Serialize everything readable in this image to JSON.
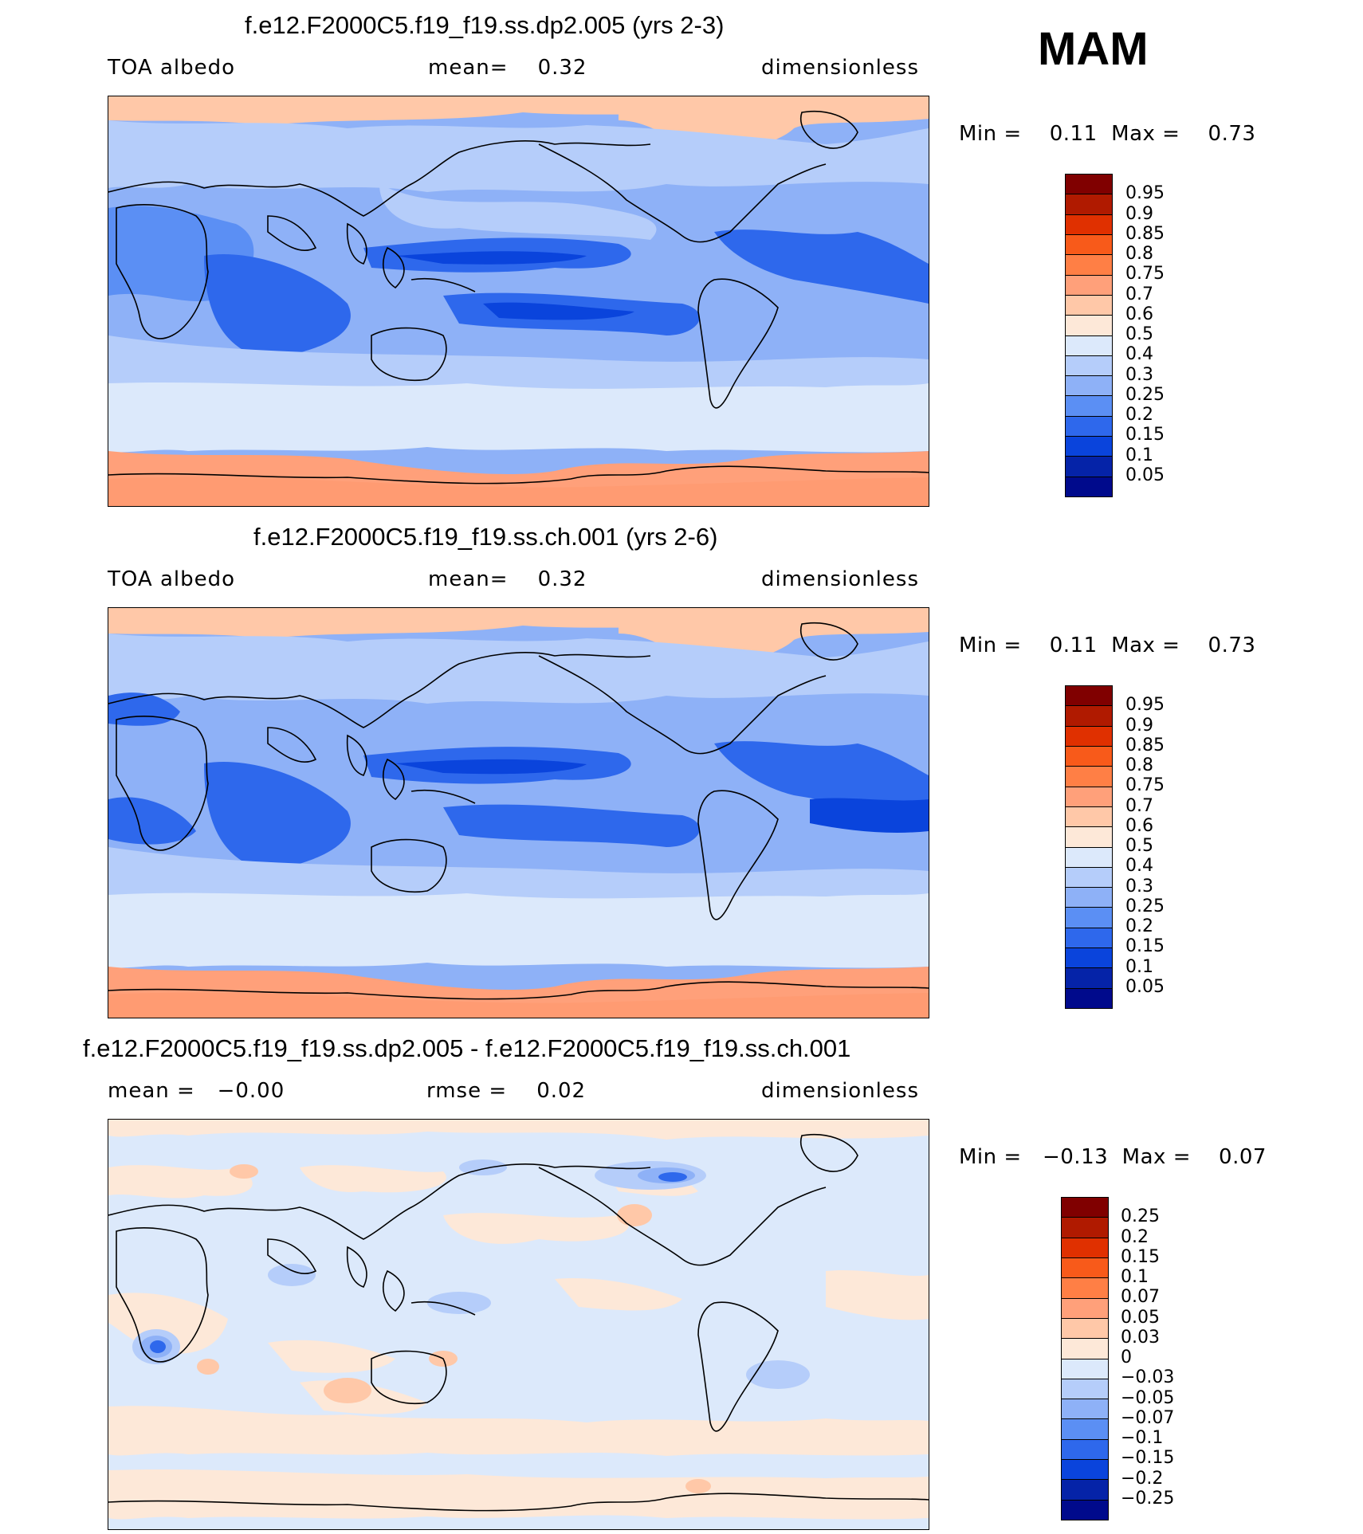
{
  "season": "MAM",
  "panels": [
    {
      "title": "f.e12.F2000C5.f19_f19.ss.dp2.005 (yrs 2-3)",
      "left_label": "TOA albedo",
      "center_label": "mean=    0.32",
      "right_label": "dimensionless",
      "minmax": "Min =    0.11  Max =    0.73",
      "colorbar": {
        "colors": [
          "#800000",
          "#b01a00",
          "#e03000",
          "#f85a1a",
          "#ff7f45",
          "#ffa07a",
          "#ffc8a8",
          "#fde8d8",
          "#dce9fb",
          "#b5cdfa",
          "#8eb1f7",
          "#5b8ff4",
          "#2e68ec",
          "#0a44dc",
          "#0523a8",
          "#000a8c"
        ],
        "labels": [
          "0.95",
          "0.9",
          "0.85",
          "0.8",
          "0.75",
          "0.7",
          "0.6",
          "0.5",
          "0.4",
          "0.3",
          "0.25",
          "0.2",
          "0.15",
          "0.1",
          "0.05"
        ]
      }
    },
    {
      "title": "f.e12.F2000C5.f19_f19.ss.ch.001 (yrs 2-6)",
      "left_label": "TOA albedo",
      "center_label": "mean=    0.32",
      "right_label": "dimensionless",
      "minmax": "Min =    0.11  Max =    0.73",
      "colorbar": {
        "colors": [
          "#800000",
          "#b01a00",
          "#e03000",
          "#f85a1a",
          "#ff7f45",
          "#ffa07a",
          "#ffc8a8",
          "#fde8d8",
          "#dce9fb",
          "#b5cdfa",
          "#8eb1f7",
          "#5b8ff4",
          "#2e68ec",
          "#0a44dc",
          "#0523a8",
          "#000a8c"
        ],
        "labels": [
          "0.95",
          "0.9",
          "0.85",
          "0.8",
          "0.75",
          "0.7",
          "0.6",
          "0.5",
          "0.4",
          "0.3",
          "0.25",
          "0.2",
          "0.15",
          "0.1",
          "0.05"
        ]
      }
    },
    {
      "title": "f.e12.F2000C5.f19_f19.ss.dp2.005 - f.e12.F2000C5.f19_f19.ss.ch.001",
      "left_label": "mean =   −0.00",
      "center_label": "rmse =    0.02",
      "right_label": "dimensionless",
      "minmax": "Min =   −0.13  Max =    0.07",
      "colorbar": {
        "colors": [
          "#800000",
          "#b01a00",
          "#e03000",
          "#f85a1a",
          "#ff7f45",
          "#ffa07a",
          "#ffc8a8",
          "#fde8d8",
          "#dce9fb",
          "#b5cdfa",
          "#8eb1f7",
          "#5b8ff4",
          "#2e68ec",
          "#0a44dc",
          "#0523a8",
          "#000a8c"
        ],
        "labels": [
          "0.25",
          "0.2",
          "0.15",
          "0.1",
          "0.07",
          "0.05",
          "0.03",
          "0",
          "−0.03",
          "−0.05",
          "−0.07",
          "−0.1",
          "−0.15",
          "−0.2",
          "−0.25"
        ]
      }
    }
  ]
}
